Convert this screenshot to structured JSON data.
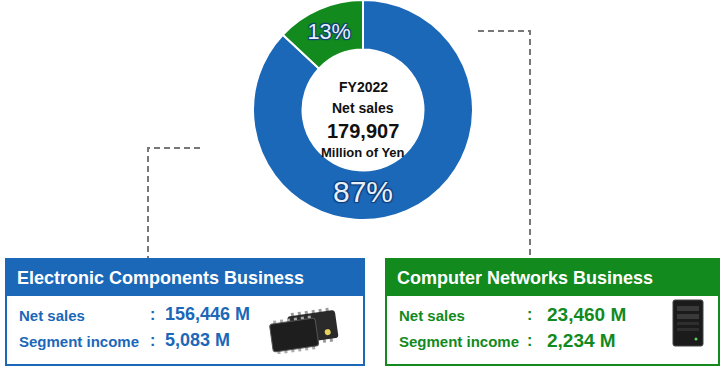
{
  "chart_data": {
    "type": "pie",
    "categories": [
      "Electronic Components Business",
      "Computer Networks Business"
    ],
    "values": [
      87,
      13
    ],
    "value_labels": [
      "87%",
      "13%"
    ],
    "colors": [
      "#1c68b8",
      "#128a1e"
    ],
    "data_labels": true,
    "center_text": [
      "FY2022",
      "Net sales",
      "179,907",
      "Million of Yen"
    ],
    "details": [
      [
        [
          "Net sales",
          ":",
          "156,446 M"
        ],
        [
          "Segment income",
          ":",
          "5,083 M"
        ]
      ],
      [
        [
          "Net sales",
          ":",
          "23,460 M"
        ],
        [
          "Segment income",
          ":",
          "2,234 M"
        ]
      ]
    ]
  }
}
